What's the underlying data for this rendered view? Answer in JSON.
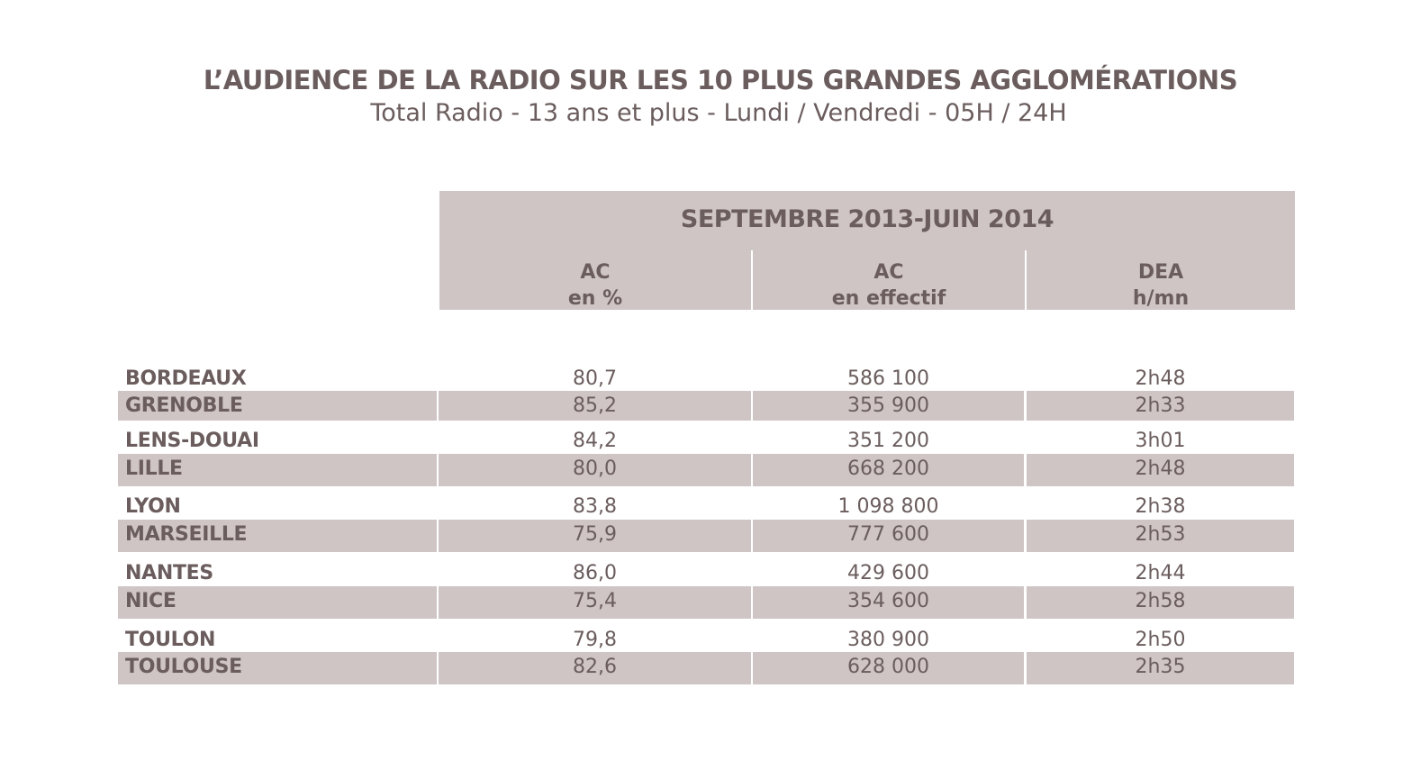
{
  "header": {
    "title": "L’AUDIENCE DE LA RADIO SUR LES 10 PLUS GRANDES AGGLOMÉRATIONS",
    "subtitle": "Total Radio - 13 ans et plus - Lundi / Vendredi - 05H / 24H"
  },
  "table": {
    "period": "SEPTEMBRE 2013-JUIN 2014",
    "columns": [
      {
        "line1": "AC",
        "line2": "en %"
      },
      {
        "line1": "AC",
        "line2": "en effectif"
      },
      {
        "line1": "DEA",
        "line2": "h/mn"
      }
    ]
  },
  "chart_data": {
    "type": "table",
    "title": "L’AUDIENCE DE LA RADIO SUR LES 10 PLUS GRANDES AGGLOMÉRATIONS",
    "subtitle": "Total Radio - 13 ans et plus - Lundi / Vendredi - 05H / 24H",
    "period": "SEPTEMBRE 2013-JUIN 2014",
    "headers": [
      "AC en %",
      "AC en effectif",
      "DEA h/mn"
    ],
    "rows": [
      {
        "city": "BORDEAUX",
        "ac_pct": "80,7",
        "ac_eff": "586 100",
        "dea": "2h48"
      },
      {
        "city": "GRENOBLE",
        "ac_pct": "85,2",
        "ac_eff": "355 900",
        "dea": "2h33"
      },
      {
        "city": "LENS-DOUAI",
        "ac_pct": "84,2",
        "ac_eff": "351 200",
        "dea": "3h01"
      },
      {
        "city": "LILLE",
        "ac_pct": "80,0",
        "ac_eff": "668 200",
        "dea": "2h48"
      },
      {
        "city": "LYON",
        "ac_pct": "83,8",
        "ac_eff": "1 098 800",
        "dea": "2h38"
      },
      {
        "city": "MARSEILLE",
        "ac_pct": "75,9",
        "ac_eff": "777 600",
        "dea": "2h53"
      },
      {
        "city": "NANTES",
        "ac_pct": "86,0",
        "ac_eff": "429 600",
        "dea": "2h44"
      },
      {
        "city": "NICE",
        "ac_pct": "75,4",
        "ac_eff": "354 600",
        "dea": "2h58"
      },
      {
        "city": "TOULON",
        "ac_pct": "79,8",
        "ac_eff": "380 900",
        "dea": "2h50"
      },
      {
        "city": "TOULOUSE",
        "ac_pct": "82,6",
        "ac_eff": "628 000",
        "dea": "2h35"
      }
    ]
  },
  "colors": {
    "text": "#6b5d5d",
    "band": "#cfc5c5",
    "background": "#ffffff"
  }
}
